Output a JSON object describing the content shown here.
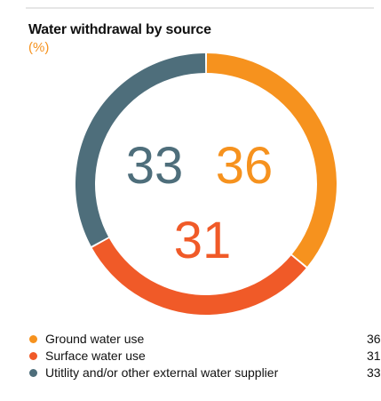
{
  "chart_data": {
    "type": "pie",
    "title": "Water withdrawal by source",
    "subtitle": "(%)",
    "donut": true,
    "categories": [
      "Ground water use",
      "Surface water use",
      "Utitlity and/or other external water supplier"
    ],
    "values": [
      36,
      31,
      33
    ],
    "colors": [
      "#f6921e",
      "#f05a28",
      "#4e6e7b"
    ],
    "value_labels": [
      "36",
      "31",
      "33"
    ],
    "legend_values": [
      "36",
      "31",
      "33"
    ],
    "legend_position": "bottom"
  }
}
